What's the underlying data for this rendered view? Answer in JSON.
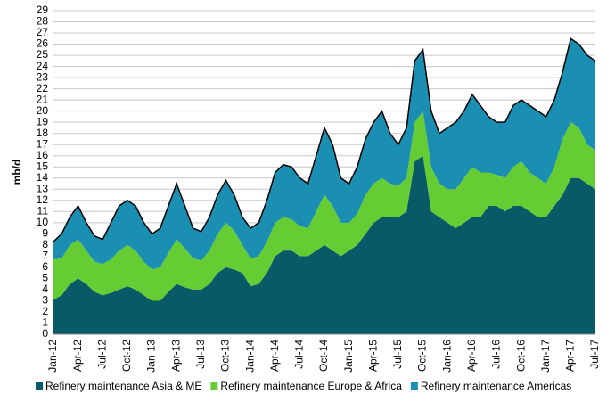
{
  "chart_data": {
    "type": "stacked_area",
    "y_label": "mb/d",
    "categories": [
      "Jan-12",
      null,
      null,
      "Apr-12",
      null,
      null,
      "Jul-12",
      null,
      null,
      "Oct-12",
      null,
      null,
      "Jan-13",
      null,
      null,
      "Apr-13",
      null,
      null,
      "Jul-13",
      null,
      null,
      "Oct-13",
      null,
      null,
      "Jan-14",
      null,
      null,
      "Apr-14",
      null,
      null,
      "Jul-14",
      null,
      null,
      "Oct-14",
      null,
      null,
      "Jan-15",
      null,
      null,
      "Apr-15",
      null,
      null,
      "Jul-15",
      null,
      null,
      "Oct-15",
      null,
      null,
      "Jan-16",
      null,
      null,
      "Apr-16",
      null,
      null,
      "Jul-16",
      null,
      null,
      "Oct-16",
      null,
      null,
      "Jan-17",
      null,
      null,
      "Apr-17",
      null,
      null,
      "Jul-17"
    ],
    "series": [
      {
        "name": "Refinery maintenance Asia & ME",
        "color": "#075a66",
        "values": [
          3.1,
          3.5,
          4.5,
          5,
          4.5,
          3.8,
          3.5,
          3.7,
          4,
          4.3,
          4,
          3.5,
          3,
          3,
          3.8,
          4.5,
          4.2,
          4,
          4,
          4.5,
          5.5,
          6,
          5.8,
          5.5,
          4.3,
          4.5,
          5.5,
          7,
          7.5,
          7.5,
          7,
          7,
          7.5,
          8,
          7.5,
          7,
          7.5,
          8,
          9,
          10,
          10.5,
          10.5,
          10.5,
          11,
          15.5,
          16,
          11,
          10.5,
          10,
          9.5,
          10,
          10.5,
          10.5,
          11.5,
          11.5,
          11,
          11.5,
          11.5,
          11,
          10.5,
          10.5,
          11.5,
          12.5,
          14,
          14,
          13.5,
          13
        ]
      },
      {
        "name": "Refinery maintenance Europe & Africa",
        "color": "#66cc33",
        "values": [
          3.6,
          3.3,
          3.5,
          3.5,
          3,
          2.7,
          2.8,
          3,
          3.5,
          3.7,
          3.5,
          3,
          2.8,
          3,
          3.5,
          4,
          3.5,
          2.8,
          2.6,
          3,
          3.5,
          4,
          3.5,
          2.5,
          2.5,
          2.5,
          2.8,
          3,
          3,
          2.8,
          2.7,
          2.5,
          3.5,
          4.5,
          4,
          3,
          2.5,
          2.8,
          3.5,
          3.5,
          3.5,
          3,
          2.8,
          3,
          3.5,
          4,
          4,
          3,
          3,
          3.5,
          4,
          4.5,
          4,
          3,
          2.8,
          3,
          3.5,
          4,
          3.5,
          3.5,
          3,
          3.5,
          5,
          5,
          4.5,
          3.5,
          3.5
        ]
      },
      {
        "name": "Refinery maintenance Americas",
        "color": "#1b8fb2",
        "values": [
          1.6,
          2.2,
          2.5,
          3,
          2.5,
          2.3,
          2.2,
          3.3,
          4,
          4,
          4,
          3.5,
          3.2,
          3.5,
          4.2,
          5,
          3.8,
          2.7,
          2.6,
          3,
          3.5,
          3.8,
          3.2,
          2.5,
          2.7,
          3,
          3.7,
          4.5,
          4.7,
          4.7,
          4.3,
          4,
          5,
          6,
          5.5,
          4,
          3.5,
          4.2,
          5,
          5.5,
          6,
          4.5,
          3.7,
          4.5,
          5.5,
          5.5,
          5,
          4.5,
          5.5,
          6,
          6,
          6.5,
          6,
          5,
          4.7,
          5,
          5.5,
          5.5,
          6,
          6,
          6,
          6,
          6,
          7.5,
          7.5,
          8,
          8
        ]
      }
    ],
    "ylim": [
      0,
      29
    ],
    "yticks": [
      0,
      1,
      2,
      3,
      4,
      5,
      6,
      7,
      8,
      9,
      10,
      11,
      12,
      13,
      14,
      15,
      16,
      17,
      18,
      19,
      20,
      21,
      22,
      23,
      24,
      25,
      26,
      27,
      28,
      29
    ],
    "grid": true,
    "legend": "bottom",
    "outline_color": "#000000"
  }
}
